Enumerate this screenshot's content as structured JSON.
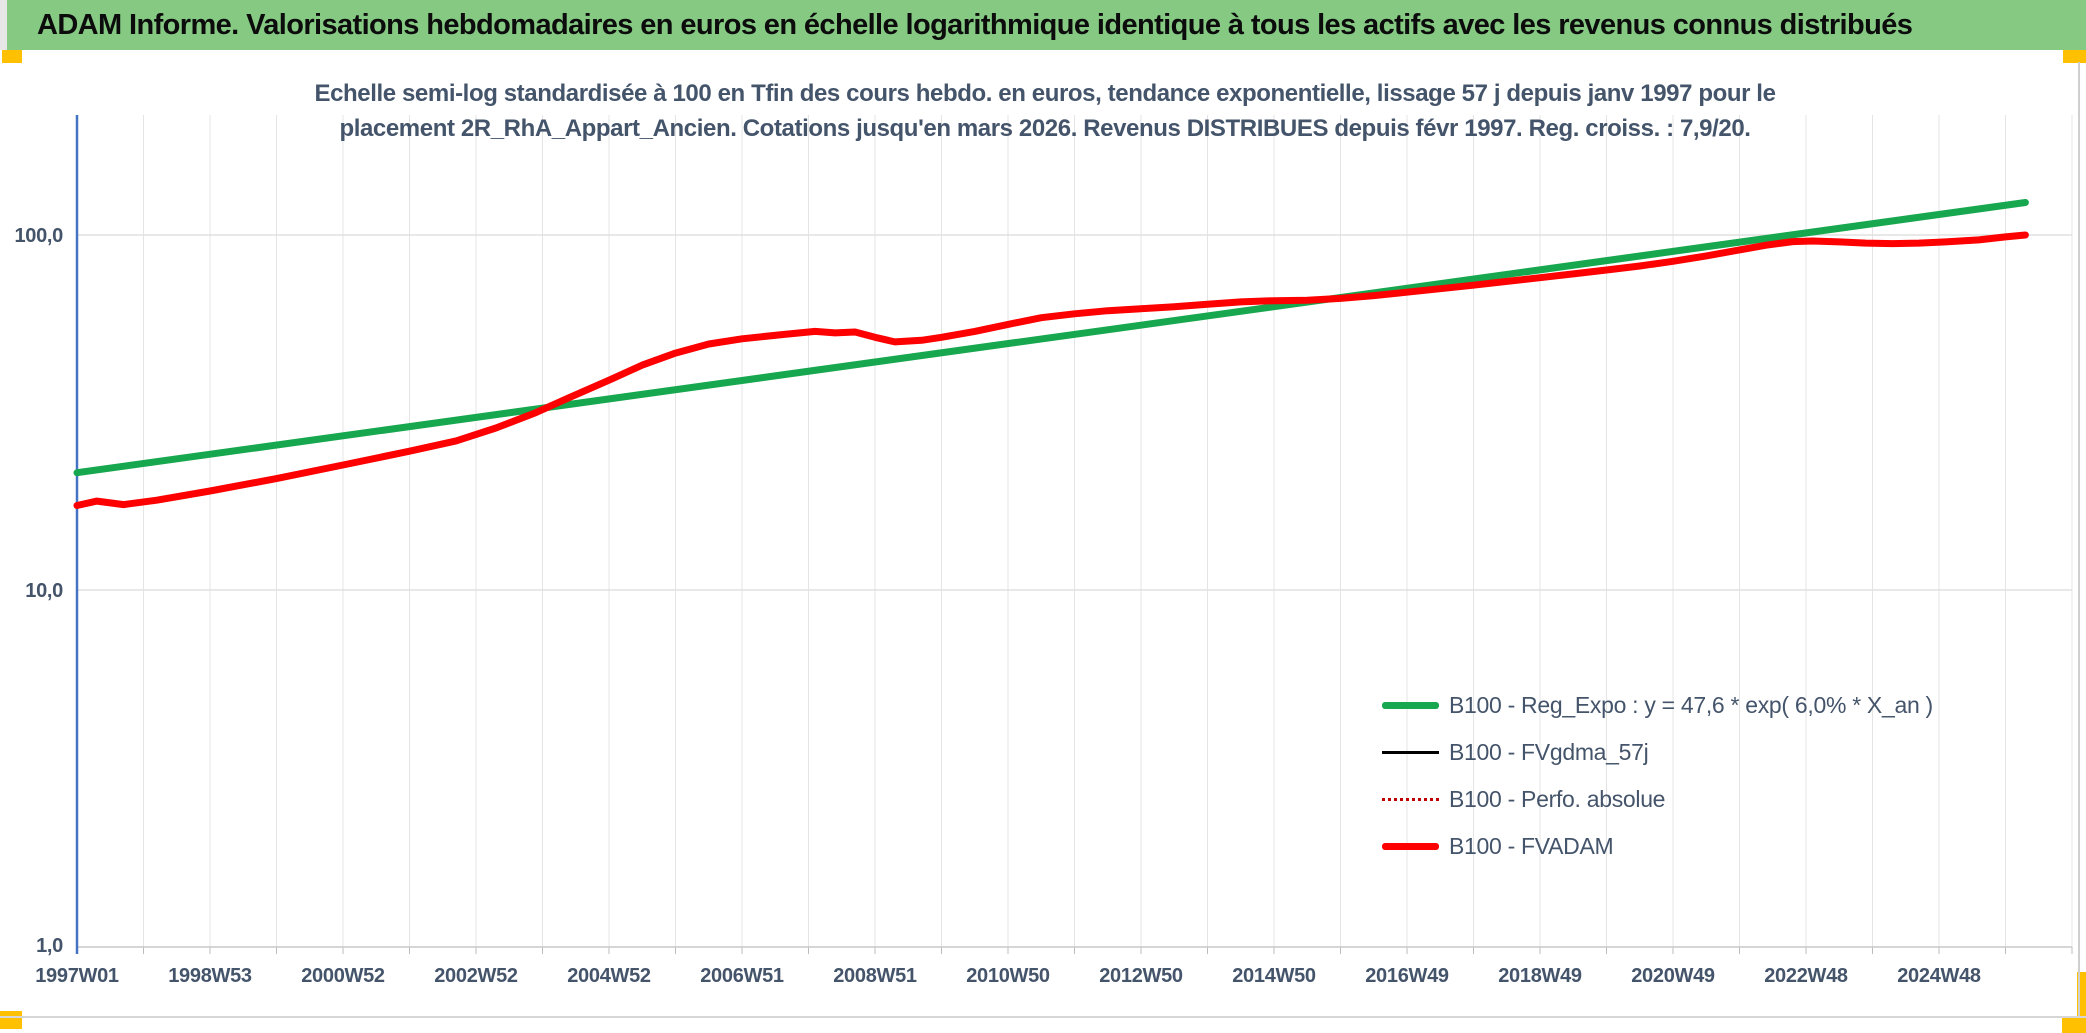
{
  "header": {
    "title": "ADAM Informe. Valorisations hebdomadaires en euros en échelle logarithmique identique à tous les actifs avec les revenus connus distribués"
  },
  "chart_data": {
    "type": "line",
    "title_lines": [
      "Echelle semi-log standardisée à 100 en Tfin des cours hebdo. en euros, tendance exponentielle, lissage 57 j depuis janv 1997 pour le",
      "placement 2R_RhA_Appart_Ancien. Cotations jusqu'en mars 2026. Revenus DISTRIBUES depuis févr 1997. Reg. croiss. : 7,9/20."
    ],
    "y_axis": {
      "scale": "log",
      "ticks": [
        {
          "label": "100,0",
          "value": 100
        },
        {
          "label": "10,0",
          "value": 10
        },
        {
          "label": "1,0",
          "value": 1
        }
      ]
    },
    "x_axis": {
      "tick_labels": [
        "1997W01",
        "1998W53",
        "2000W52",
        "2002W52",
        "2004W52",
        "2006W51",
        "2008W51",
        "2010W50",
        "2012W50",
        "2014W50",
        "2016W49",
        "2018W49",
        "2020W49",
        "2022W48",
        "2024W48"
      ],
      "start_year": 1997.0,
      "end_year": 2026.3,
      "minor_gridline_interval_years": 1,
      "label_interval_years": 2
    },
    "legend": [
      {
        "label": "B100 - Reg_Expo : y = 47,6 * exp( 6,0% * X_an )",
        "color": "#17a74e",
        "style": "solid-thick"
      },
      {
        "label": "B100 - FVgdma_57j",
        "color": "#000000",
        "style": "solid-thin"
      },
      {
        "label": "B100 - Perfo. absolue",
        "color": "#c00000",
        "style": "dotted-thin"
      },
      {
        "label": "B100 - FVADAM",
        "color": "#fe0000",
        "style": "solid-thick"
      }
    ],
    "series": [
      {
        "name": "B100 - Reg_Expo",
        "color": "#17a74e",
        "width": 7,
        "points": [
          [
            1997.0,
            21.4
          ],
          [
            2026.3,
            123.5
          ]
        ]
      },
      {
        "name": "B100 - FVgdma_57j",
        "color": "#000000",
        "width": 2,
        "points_key": "fvadam_points"
      },
      {
        "name": "B100 - Perfo. absolue",
        "color": "#c00000",
        "width": 2,
        "dash": "2 5",
        "points_key": "fvadam_points"
      },
      {
        "name": "B100 - FVADAM",
        "color": "#fe0000",
        "width": 7,
        "points_key": "fvadam_points"
      }
    ],
    "fvadam_points": [
      [
        1997.0,
        17.3
      ],
      [
        1997.3,
        17.8
      ],
      [
        1997.7,
        17.4
      ],
      [
        1998.2,
        17.9
      ],
      [
        1999.0,
        19.0
      ],
      [
        2000.0,
        20.6
      ],
      [
        2001.0,
        22.5
      ],
      [
        2002.0,
        24.6
      ],
      [
        2002.7,
        26.3
      ],
      [
        2003.3,
        28.6
      ],
      [
        2003.9,
        31.6
      ],
      [
        2004.4,
        34.8
      ],
      [
        2005.0,
        39.0
      ],
      [
        2005.5,
        43.0
      ],
      [
        2006.0,
        46.5
      ],
      [
        2006.5,
        49.3
      ],
      [
        2007.0,
        51.0
      ],
      [
        2007.6,
        52.4
      ],
      [
        2008.1,
        53.5
      ],
      [
        2008.4,
        53.0
      ],
      [
        2008.7,
        53.3
      ],
      [
        2009.0,
        51.5
      ],
      [
        2009.3,
        50.0
      ],
      [
        2009.7,
        50.5
      ],
      [
        2010.0,
        51.5
      ],
      [
        2010.5,
        53.5
      ],
      [
        2011.0,
        56.0
      ],
      [
        2011.5,
        58.5
      ],
      [
        2012.0,
        60.0
      ],
      [
        2012.5,
        61.2
      ],
      [
        2013.0,
        62.0
      ],
      [
        2013.5,
        62.8
      ],
      [
        2014.0,
        63.8
      ],
      [
        2014.5,
        64.8
      ],
      [
        2015.0,
        65.3
      ],
      [
        2015.5,
        65.5
      ],
      [
        2016.0,
        66.3
      ],
      [
        2016.5,
        67.5
      ],
      [
        2017.0,
        69.0
      ],
      [
        2017.5,
        70.6
      ],
      [
        2018.0,
        72.2
      ],
      [
        2018.5,
        74.0
      ],
      [
        2019.0,
        75.8
      ],
      [
        2019.5,
        77.7
      ],
      [
        2020.0,
        79.7
      ],
      [
        2020.5,
        81.8
      ],
      [
        2021.0,
        84.3
      ],
      [
        2021.5,
        87.3
      ],
      [
        2022.0,
        90.8
      ],
      [
        2022.4,
        93.6
      ],
      [
        2022.8,
        95.8
      ],
      [
        2023.1,
        96.2
      ],
      [
        2023.5,
        95.6
      ],
      [
        2023.9,
        94.9
      ],
      [
        2024.3,
        94.6
      ],
      [
        2024.7,
        94.9
      ],
      [
        2025.1,
        95.6
      ],
      [
        2025.6,
        96.9
      ],
      [
        2026.0,
        98.8
      ],
      [
        2026.3,
        100.0
      ]
    ],
    "final_value_standardized": 100,
    "regression_annual_growth": "6,0%",
    "regression_coefficient": "47,6"
  },
  "colors": {
    "header_bg": "#85c983",
    "accent_yellow": "#fec000",
    "text_slate": "#44546a",
    "y_axis_line": "#4472c4",
    "gridline": "#e4e4e4",
    "series_green": "#17a74e",
    "series_red": "#fe0000",
    "series_dotted_red": "#c00000",
    "series_black": "#000000"
  }
}
